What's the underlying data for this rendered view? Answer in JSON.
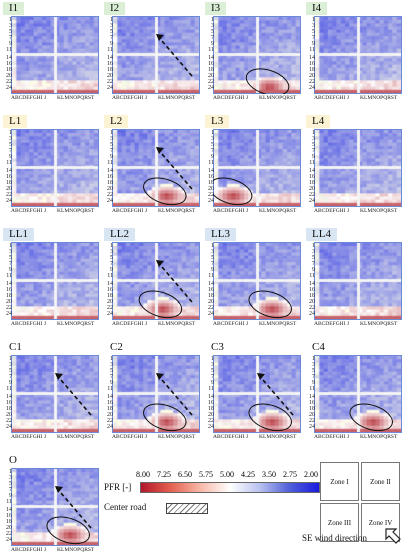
{
  "panels": [
    {
      "id": "I1",
      "title": "I1",
      "bg": "#dbefd6"
    },
    {
      "id": "I2",
      "title": "I2",
      "bg": "#dbefd6"
    },
    {
      "id": "I3",
      "title": "I3",
      "bg": "#dbefd6"
    },
    {
      "id": "I4",
      "title": "I4",
      "bg": "#dbefd6"
    },
    {
      "id": "L1",
      "title": "L1",
      "bg": "#fbf3d3"
    },
    {
      "id": "L2",
      "title": "L2",
      "bg": "#fbf3d3"
    },
    {
      "id": "L3",
      "title": "L3",
      "bg": "#fbf3d3"
    },
    {
      "id": "L4",
      "title": "L4",
      "bg": "#fbf3d3"
    },
    {
      "id": "LL1",
      "title": "LL1",
      "bg": "#d8e6f3"
    },
    {
      "id": "LL2",
      "title": "LL2",
      "bg": "#d8e6f3"
    },
    {
      "id": "LL3",
      "title": "LL3",
      "bg": "#d8e6f3"
    },
    {
      "id": "LL4",
      "title": "LL4",
      "bg": "#d8e6f3"
    },
    {
      "id": "C1",
      "title": "C1",
      "bg": "#ffffff"
    },
    {
      "id": "C2",
      "title": "C2",
      "bg": "#ffffff"
    },
    {
      "id": "C3",
      "title": "C3",
      "bg": "#ffffff"
    },
    {
      "id": "C4",
      "title": "C4",
      "bg": "#ffffff"
    },
    {
      "id": "O",
      "title": "O",
      "bg": "#ffffff"
    }
  ],
  "axis": {
    "y_top": [
      "1",
      "3",
      "5",
      "7",
      "9",
      "11"
    ],
    "y_bottom": [
      "14",
      "16",
      "18",
      "20",
      "22",
      "24"
    ],
    "x_left": "ABCDEFGHI J",
    "x_right": "KLMNOPQRST"
  },
  "legend": {
    "label": "PFR [-]",
    "ticks": [
      "8.00",
      "7.25",
      "6.50",
      "5.75",
      "5.00",
      "4.25",
      "3.50",
      "2.75",
      "2.00"
    ],
    "road_label": "Center road",
    "colors": [
      "#b2182b",
      "#e4604e",
      "#f7b8a8",
      "#ffffff",
      "#b9c2f0",
      "#5060d8",
      "#1a1adf"
    ]
  },
  "zones": [
    "Zone I",
    "Zone II",
    "Zone III",
    "Zone IV"
  ],
  "wind": {
    "label": "SE wind direction",
    "icon": "arrow-icon"
  }
}
